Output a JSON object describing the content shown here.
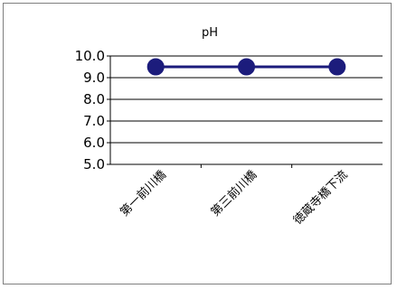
{
  "chart_data": {
    "type": "line",
    "title": "pH",
    "categories": [
      "第一前川橋",
      "第三前川橋",
      "徳蔵寺橋下流"
    ],
    "series": [
      {
        "values": [
          9.5,
          9.5,
          9.5
        ]
      }
    ],
    "y_ticks": [
      "5.0",
      "6.0",
      "7.0",
      "8.0",
      "9.0",
      "10.0"
    ],
    "ylim": [
      5.0,
      10.0
    ],
    "grid": true,
    "legend": "none",
    "colors": {
      "line": "#1c1c7c",
      "marker": "#1c1c7c",
      "grid": "#000000",
      "axis": "#000000"
    }
  }
}
